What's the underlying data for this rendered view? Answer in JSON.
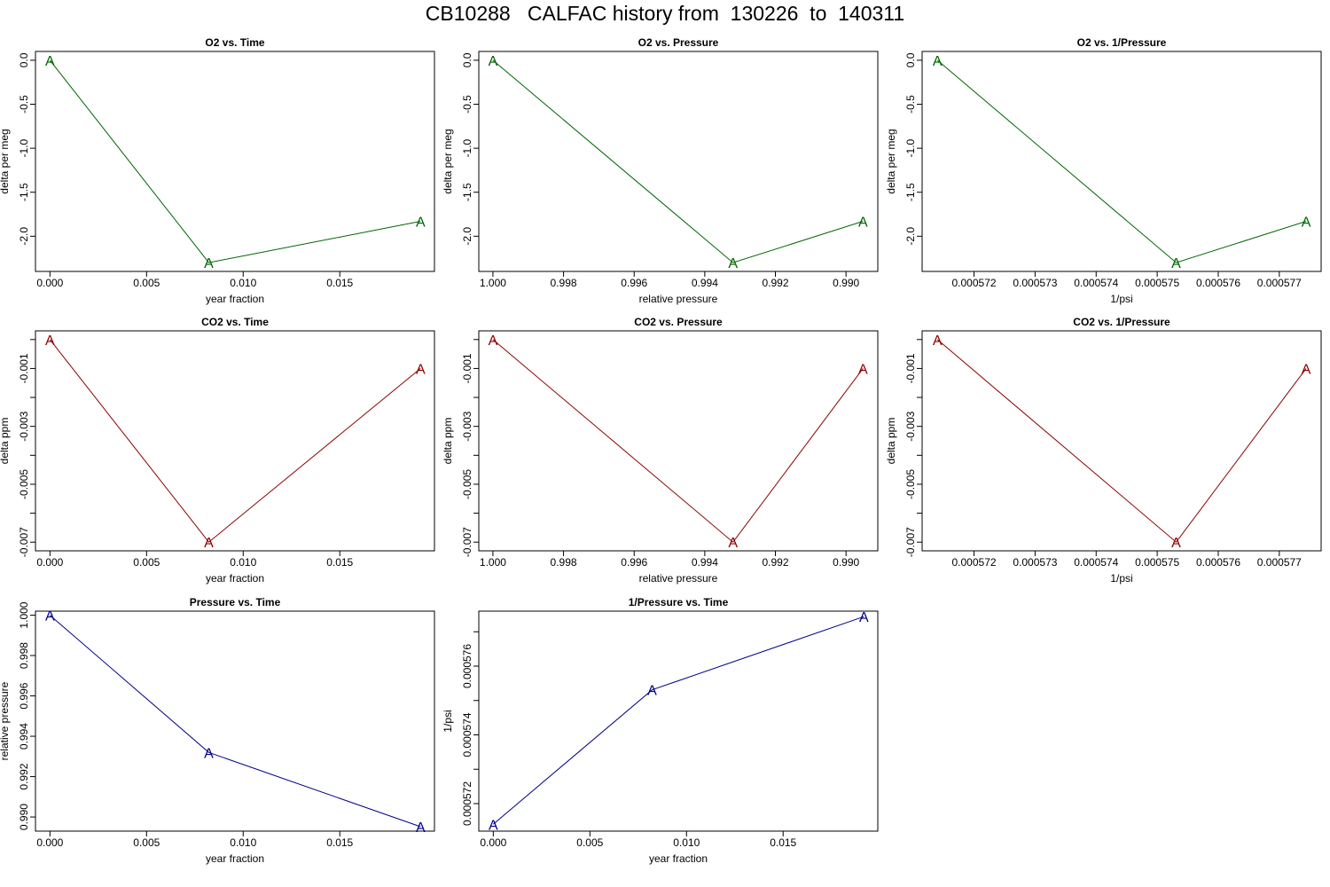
{
  "figure": {
    "title": "CB10288   CALFAC history from  130226  to  140311"
  },
  "colors": {
    "o2": "#006400",
    "co2": "#8b0000",
    "pressure": "#00008b",
    "axis": "#000000"
  },
  "chart_data": [
    {
      "type": "line",
      "title": "O2 vs. Time",
      "xlabel": "year fraction",
      "ylabel": "delta per meg",
      "color_key": "o2",
      "marker": "A",
      "x": [
        0.0,
        0.00822,
        0.01918
      ],
      "y": [
        0.0,
        -2.3,
        -1.83
      ],
      "xlim": [
        -0.00075,
        0.0199
      ],
      "ylim": [
        -2.4,
        0.1
      ],
      "xticks": [
        0.0,
        0.005,
        0.01,
        0.015
      ],
      "xtick_labels": [
        "0.000",
        "0.005",
        "0.010",
        "0.015"
      ],
      "yticks": [
        0.0,
        -0.5,
        -1.0,
        -1.5,
        -2.0
      ],
      "ytick_labels": [
        "0.0",
        "-0.5",
        "-1.0",
        "-1.5",
        "-2.0"
      ]
    },
    {
      "type": "line",
      "title": "O2 vs. Pressure",
      "xlabel": "relative pressure",
      "ylabel": "delta per meg",
      "color_key": "o2",
      "marker": "A",
      "x": [
        1.0,
        0.9932,
        0.98952
      ],
      "y": [
        0.0,
        -2.3,
        -1.83
      ],
      "xlim": [
        1.0004,
        0.9891
      ],
      "ylim": [
        -2.4,
        0.1
      ],
      "xticks": [
        1.0,
        0.998,
        0.996,
        0.994,
        0.992,
        0.99
      ],
      "xtick_labels": [
        "1.000",
        "0.998",
        "0.996",
        "0.994",
        "0.992",
        "0.990"
      ],
      "yticks": [
        0.0,
        -0.5,
        -1.0,
        -1.5,
        -2.0
      ],
      "ytick_labels": [
        "0.0",
        "-0.5",
        "-1.0",
        "-1.5",
        "-2.0"
      ]
    },
    {
      "type": "line",
      "title": "O2 vs. 1/Pressure",
      "xlabel": "1/psi",
      "ylabel": "delta per meg",
      "color_key": "o2",
      "marker": "A",
      "x": [
        0.0005714,
        0.00057531,
        0.00057744
      ],
      "y": [
        0.0,
        -2.3,
        -1.83
      ],
      "xlim": [
        0.00057115,
        0.000577685
      ],
      "ylim": [
        -2.4,
        0.1
      ],
      "xticks": [
        0.000572,
        0.000573,
        0.000574,
        0.000575,
        0.000576,
        0.000577
      ],
      "xtick_labels": [
        "0.000572",
        "0.000573",
        "0.000574",
        "0.000575",
        "0.000576",
        "0.000577"
      ],
      "yticks": [
        0.0,
        -0.5,
        -1.0,
        -1.5,
        -2.0
      ],
      "ytick_labels": [
        "0.0",
        "-0.5",
        "-1.0",
        "-1.5",
        "-2.0"
      ]
    },
    {
      "type": "line",
      "title": "CO2 vs. Time",
      "xlabel": "year fraction",
      "ylabel": "delta ppm",
      "color_key": "co2",
      "marker": "A",
      "x": [
        0.0,
        0.00822,
        0.01918
      ],
      "y": [
        0.0,
        -0.007,
        -0.001
      ],
      "xlim": [
        -0.00075,
        0.0199
      ],
      "ylim": [
        -0.0073,
        0.0003
      ],
      "xticks": [
        0.0,
        0.005,
        0.01,
        0.015
      ],
      "xtick_labels": [
        "0.000",
        "0.005",
        "0.010",
        "0.015"
      ],
      "yticks": [
        0.0,
        -0.001,
        -0.002,
        -0.003,
        -0.004,
        -0.005,
        -0.006,
        -0.007
      ],
      "ytick_labels": [
        "",
        "-0.001",
        "",
        "-0.003",
        "",
        "-0.005",
        "",
        "-0.007"
      ]
    },
    {
      "type": "line",
      "title": "CO2 vs. Pressure",
      "xlabel": "relative pressure",
      "ylabel": "delta ppm",
      "color_key": "co2",
      "marker": "A",
      "x": [
        1.0,
        0.9932,
        0.98952
      ],
      "y": [
        0.0,
        -0.007,
        -0.001
      ],
      "xlim": [
        1.0004,
        0.9891
      ],
      "ylim": [
        -0.0073,
        0.0003
      ],
      "xticks": [
        1.0,
        0.998,
        0.996,
        0.994,
        0.992,
        0.99
      ],
      "xtick_labels": [
        "1.000",
        "0.998",
        "0.996",
        "0.994",
        "0.992",
        "0.990"
      ],
      "yticks": [
        0.0,
        -0.001,
        -0.002,
        -0.003,
        -0.004,
        -0.005,
        -0.006,
        -0.007
      ],
      "ytick_labels": [
        "",
        "-0.001",
        "",
        "-0.003",
        "",
        "-0.005",
        "",
        "-0.007"
      ]
    },
    {
      "type": "line",
      "title": "CO2 vs. 1/Pressure",
      "xlabel": "1/psi",
      "ylabel": "delta ppm",
      "color_key": "co2",
      "marker": "A",
      "x": [
        0.0005714,
        0.00057531,
        0.00057744
      ],
      "y": [
        0.0,
        -0.007,
        -0.001
      ],
      "xlim": [
        0.00057115,
        0.000577685
      ],
      "ylim": [
        -0.0073,
        0.0003
      ],
      "xticks": [
        0.000572,
        0.000573,
        0.000574,
        0.000575,
        0.000576,
        0.000577
      ],
      "xtick_labels": [
        "0.000572",
        "0.000573",
        "0.000574",
        "0.000575",
        "0.000576",
        "0.000577"
      ],
      "yticks": [
        0.0,
        -0.001,
        -0.002,
        -0.003,
        -0.004,
        -0.005,
        -0.006,
        -0.007
      ],
      "ytick_labels": [
        "",
        "-0.001",
        "",
        "-0.003",
        "",
        "-0.005",
        "",
        "-0.007"
      ]
    },
    {
      "type": "line",
      "title": "Pressure vs. Time",
      "xlabel": "year fraction",
      "ylabel": "relative pressure",
      "color_key": "pressure",
      "marker": "A",
      "x": [
        0.0,
        0.00822,
        0.01918
      ],
      "y": [
        1.0,
        0.9932,
        0.98952
      ],
      "xlim": [
        -0.00075,
        0.0199
      ],
      "ylim": [
        0.9893,
        1.0002
      ],
      "xticks": [
        0.0,
        0.005,
        0.01,
        0.015
      ],
      "xtick_labels": [
        "0.000",
        "0.005",
        "0.010",
        "0.015"
      ],
      "yticks": [
        0.99,
        0.992,
        0.994,
        0.996,
        0.998,
        1.0
      ],
      "ytick_labels": [
        "0.990",
        "0.992",
        "0.994",
        "0.996",
        "0.998",
        "1.000"
      ]
    },
    {
      "type": "line",
      "title": "1/Pressure vs. Time",
      "xlabel": "year fraction",
      "ylabel": "1/psi",
      "color_key": "pressure",
      "marker": "A",
      "x": [
        0.0,
        0.00822,
        0.01918
      ],
      "y": [
        0.0005714,
        0.00057531,
        0.00057744
      ],
      "xlim": [
        -0.00075,
        0.0199
      ],
      "ylim": [
        0.0005712,
        0.0005776
      ],
      "xticks": [
        0.0,
        0.005,
        0.01,
        0.015
      ],
      "xtick_labels": [
        "0.000",
        "0.005",
        "0.010",
        "0.015"
      ],
      "yticks": [
        0.000572,
        0.000573,
        0.000574,
        0.000575,
        0.000576,
        0.000577
      ],
      "ytick_labels": [
        "0.000572",
        "",
        "0.000574",
        "",
        "0.000576",
        ""
      ]
    }
  ]
}
